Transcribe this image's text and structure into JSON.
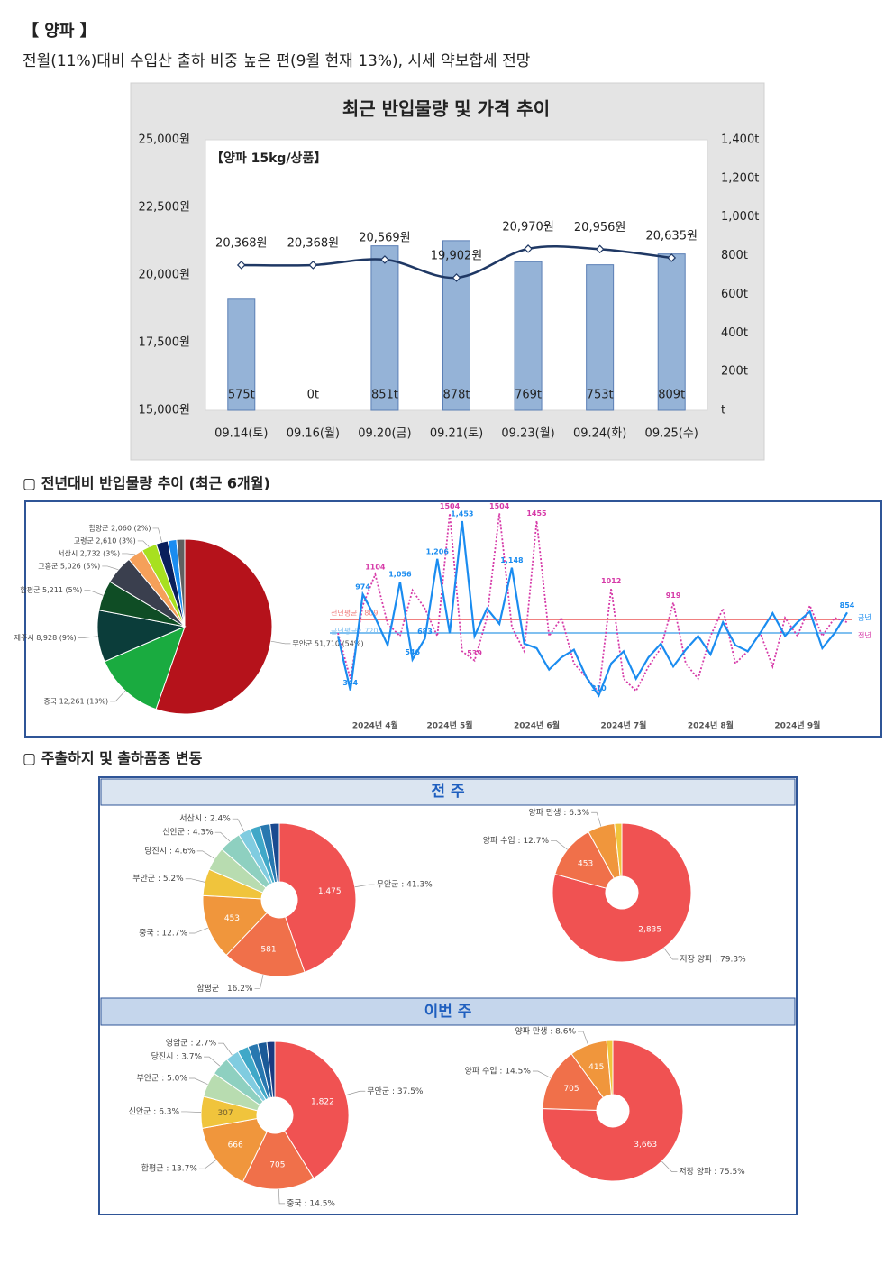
{
  "header": {
    "title": "【 양파 】",
    "subtitle": "전월(11%)대비 수입산 출하 비중 높은 편(9월 현재 13%), 시세 약보합세 전망"
  },
  "sections": [
    "▢ 전년대비 반입물량 추이 (최근 6개월)",
    "▢ 주출하지 및 출하품종 변동"
  ],
  "weeks": [
    "전 주",
    "이번 주"
  ],
  "chart_data": [
    {
      "type": "combo",
      "title": "최근 반입물량 및 가격 추이",
      "annotation": "【양파 15kg/상품】",
      "categories": [
        "09.14(토)",
        "09.16(월)",
        "09.20(금)",
        "09.21(토)",
        "09.23(월)",
        "09.24(화)",
        "09.25(수)"
      ],
      "series": [
        {
          "type": "bar",
          "axis": "y2",
          "color": "#95b3d7",
          "values": [
            575,
            0,
            851,
            878,
            769,
            753,
            809
          ],
          "value_labels": [
            "575t",
            "0t",
            "851t",
            "878t",
            "769t",
            "753t",
            "809t"
          ]
        },
        {
          "type": "line",
          "color": "#1f3864",
          "values": [
            20368,
            20368,
            20569,
            19902,
            20970,
            20956,
            20635
          ],
          "value_labels": [
            "20,368원",
            "20,368원",
            "20,569원",
            "19,902원",
            "20,970원",
            "20,956원",
            "20,635원"
          ]
        }
      ],
      "ylim": [
        15000,
        25000
      ],
      "yticks": [
        {
          "value": 15000,
          "label": "15,000원"
        },
        {
          "value": 17500,
          "label": "17,500원"
        },
        {
          "value": 20000,
          "label": "20,000원"
        },
        {
          "value": 22500,
          "label": "22,500원"
        },
        {
          "value": 25000,
          "label": "25,000원"
        }
      ],
      "y2lim": [
        0,
        1400
      ],
      "y2ticks": [
        {
          "value": 0,
          "label": "t"
        },
        {
          "value": 200,
          "label": "200t"
        },
        {
          "value": 400,
          "label": "400t"
        },
        {
          "value": 600,
          "label": "600t"
        },
        {
          "value": 800,
          "label": "800t"
        },
        {
          "value": 1000,
          "label": "1,000t"
        },
        {
          "value": 1200,
          "label": "1,200t"
        },
        {
          "value": 1400,
          "label": "1,400t"
        }
      ]
    },
    {
      "type": "pie",
      "values": [
        51710,
        12261,
        8928,
        5211,
        5026,
        2732,
        2610,
        2060,
        1500,
        1400
      ],
      "value_labels": [
        "무안군 51,710 (54%)",
        "중국 12,261 (13%)",
        "제주시 8,928 (9%)",
        "함평군 5,211 (5%)",
        "고흥군 5,026 (5%)",
        "서산시 2,732 (3%)",
        "고령군 2,610 (3%)",
        "함양군 2,060 (2%)",
        null,
        null
      ],
      "colors": [
        "#b5121b",
        "#1aab40",
        "#0b3d3a",
        "#0f4d25",
        "#3a3f4e",
        "#f5a05a",
        "#a8e020",
        "#0a1f5c",
        "#1a8cf0",
        "#606060"
      ]
    },
    {
      "type": "line",
      "categories": [
        null,
        null,
        null,
        "2024년 4월",
        null,
        null,
        null,
        null,
        null,
        "2024년 5월",
        null,
        null,
        null,
        null,
        null,
        null,
        "2024년 6월",
        null,
        null,
        null,
        null,
        null,
        null,
        "2024년 7월",
        null,
        null,
        null,
        null,
        null,
        null,
        "2024년 8월",
        null,
        null,
        null,
        null,
        null,
        null,
        "2024년 9월",
        null,
        null,
        null,
        null
      ],
      "ylim": [
        200,
        1530
      ],
      "series": [
        {
          "name": "금년",
          "color": "#1a8cf0",
          "values": [
            700,
            344,
            974,
            820,
            640,
            1056,
            546,
            683,
            1206,
            720,
            1453,
            700,
            880,
            780,
            1148,
            650,
            620,
            480,
            560,
            610,
            430,
            310,
            520,
            600,
            420,
            560,
            650,
            500,
            610,
            700,
            580,
            790,
            640,
            600,
            720,
            850,
            700,
            790,
            860,
            620,
            720,
            854
          ],
          "value_labels": [
            null,
            "344",
            "974",
            null,
            null,
            "1,056",
            "546",
            "683",
            "1,206",
            null,
            "1,453",
            null,
            null,
            null,
            "1,148",
            null,
            null,
            null,
            null,
            null,
            null,
            "310",
            null,
            null,
            null,
            null,
            null,
            null,
            null,
            null,
            null,
            null,
            null,
            null,
            null,
            null,
            null,
            null,
            null,
            null,
            null,
            "854"
          ]
        },
        {
          "name": "전년",
          "color": "#d63aa8",
          "dashed": true,
          "values": [
            720,
            420,
            900,
            1104,
            780,
            700,
            1000,
            880,
            700,
            1504,
            600,
            539,
            820,
            1504,
            760,
            600,
            1455,
            700,
            820,
            520,
            430,
            330,
            1012,
            420,
            340,
            500,
            620,
            919,
            520,
            420,
            700,
            880,
            520,
            600,
            720,
            500,
            820,
            700,
            900,
            700,
            820,
            790
          ],
          "value_labels": [
            null,
            null,
            null,
            "1104",
            null,
            null,
            null,
            null,
            null,
            "1504",
            null,
            "539",
            null,
            "1504",
            null,
            null,
            "1455",
            null,
            null,
            null,
            null,
            null,
            "1012",
            null,
            null,
            null,
            null,
            "919",
            null,
            null,
            null,
            null,
            null,
            null,
            null,
            null,
            null,
            null,
            null,
            null,
            null,
            null
          ]
        }
      ],
      "reference_lines": [
        {
          "label": "전년평균 : 809",
          "value": 809,
          "color": "#f08080"
        },
        {
          "label": "금년평균 : 720",
          "value": 720,
          "color": "#80c0f0"
        }
      ]
    },
    {
      "type": "donut",
      "values": [
        41.3,
        16.2,
        12.7,
        5.2,
        4.6,
        4.3,
        2.4,
        2.0,
        2.0,
        1.8
      ],
      "value_labels": [
        "무안군 : 41.3%",
        "함평군 : 16.2%",
        "중국 : 12.7%",
        "부안군 : 5.2%",
        "당진시 : 4.6%",
        "신안군 : 4.3%",
        "서산시 : 2.4%",
        null,
        null,
        null
      ],
      "counts": [
        1475,
        581,
        453,
        null,
        null,
        null,
        null,
        null,
        null,
        null
      ],
      "count_labels": [
        "1,475",
        "581",
        "453",
        null,
        null,
        null,
        null,
        null,
        null,
        null
      ],
      "colors": [
        "#f05252",
        "#f0704a",
        "#f0963c",
        "#f0c43c",
        "#b8dcb0",
        "#8ed0c0",
        "#80cce0",
        "#40a8c8",
        "#2878b0",
        "#1a4a90"
      ]
    },
    {
      "type": "donut",
      "values": [
        79.3,
        12.7,
        6.3,
        1.7
      ],
      "value_labels": [
        "저장 양파 : 79.3%",
        "양파 수입 : 12.7%",
        "양파 만생 : 6.3%",
        null
      ],
      "counts": [
        2835,
        453,
        null,
        null
      ],
      "count_labels": [
        "2,835",
        "453",
        null,
        null
      ],
      "colors": [
        "#f05252",
        "#f0704a",
        "#f0963c",
        "#f0c43c"
      ]
    },
    {
      "type": "donut",
      "values": [
        37.5,
        14.5,
        13.7,
        6.3,
        5.0,
        3.7,
        2.7,
        2.2,
        2.0,
        1.8,
        1.6
      ],
      "value_labels": [
        "무안군 : 37.5%",
        "중국 : 14.5%",
        "함평군 : 13.7%",
        "신안군 : 6.3%",
        "부안군 : 5.0%",
        "당진시 : 3.7%",
        "영암군 : 2.7%",
        null,
        null,
        null,
        null
      ],
      "counts": [
        1822,
        705,
        666,
        307,
        null,
        null,
        null,
        null,
        null,
        null,
        null
      ],
      "count_labels": [
        "1,822",
        "705",
        "666",
        "307",
        null,
        null,
        null,
        null,
        null,
        null,
        null
      ],
      "colors": [
        "#f05252",
        "#f0704a",
        "#f0963c",
        "#f0c43c",
        "#b8dcb0",
        "#8ed0c0",
        "#80cce0",
        "#40a8c8",
        "#2878b0",
        "#1a5a98",
        "#1a3a80"
      ]
    },
    {
      "type": "donut",
      "values": [
        75.5,
        14.5,
        8.6,
        1.4
      ],
      "value_labels": [
        "저장 양파 : 75.5%",
        "양파 수입 : 14.5%",
        "양파 만생 : 8.6%",
        null
      ],
      "counts": [
        3663,
        705,
        415,
        null
      ],
      "count_labels": [
        "3,663",
        "705",
        "415",
        null
      ],
      "colors": [
        "#f05252",
        "#f0704a",
        "#f0963c",
        "#f0c43c"
      ]
    }
  ]
}
